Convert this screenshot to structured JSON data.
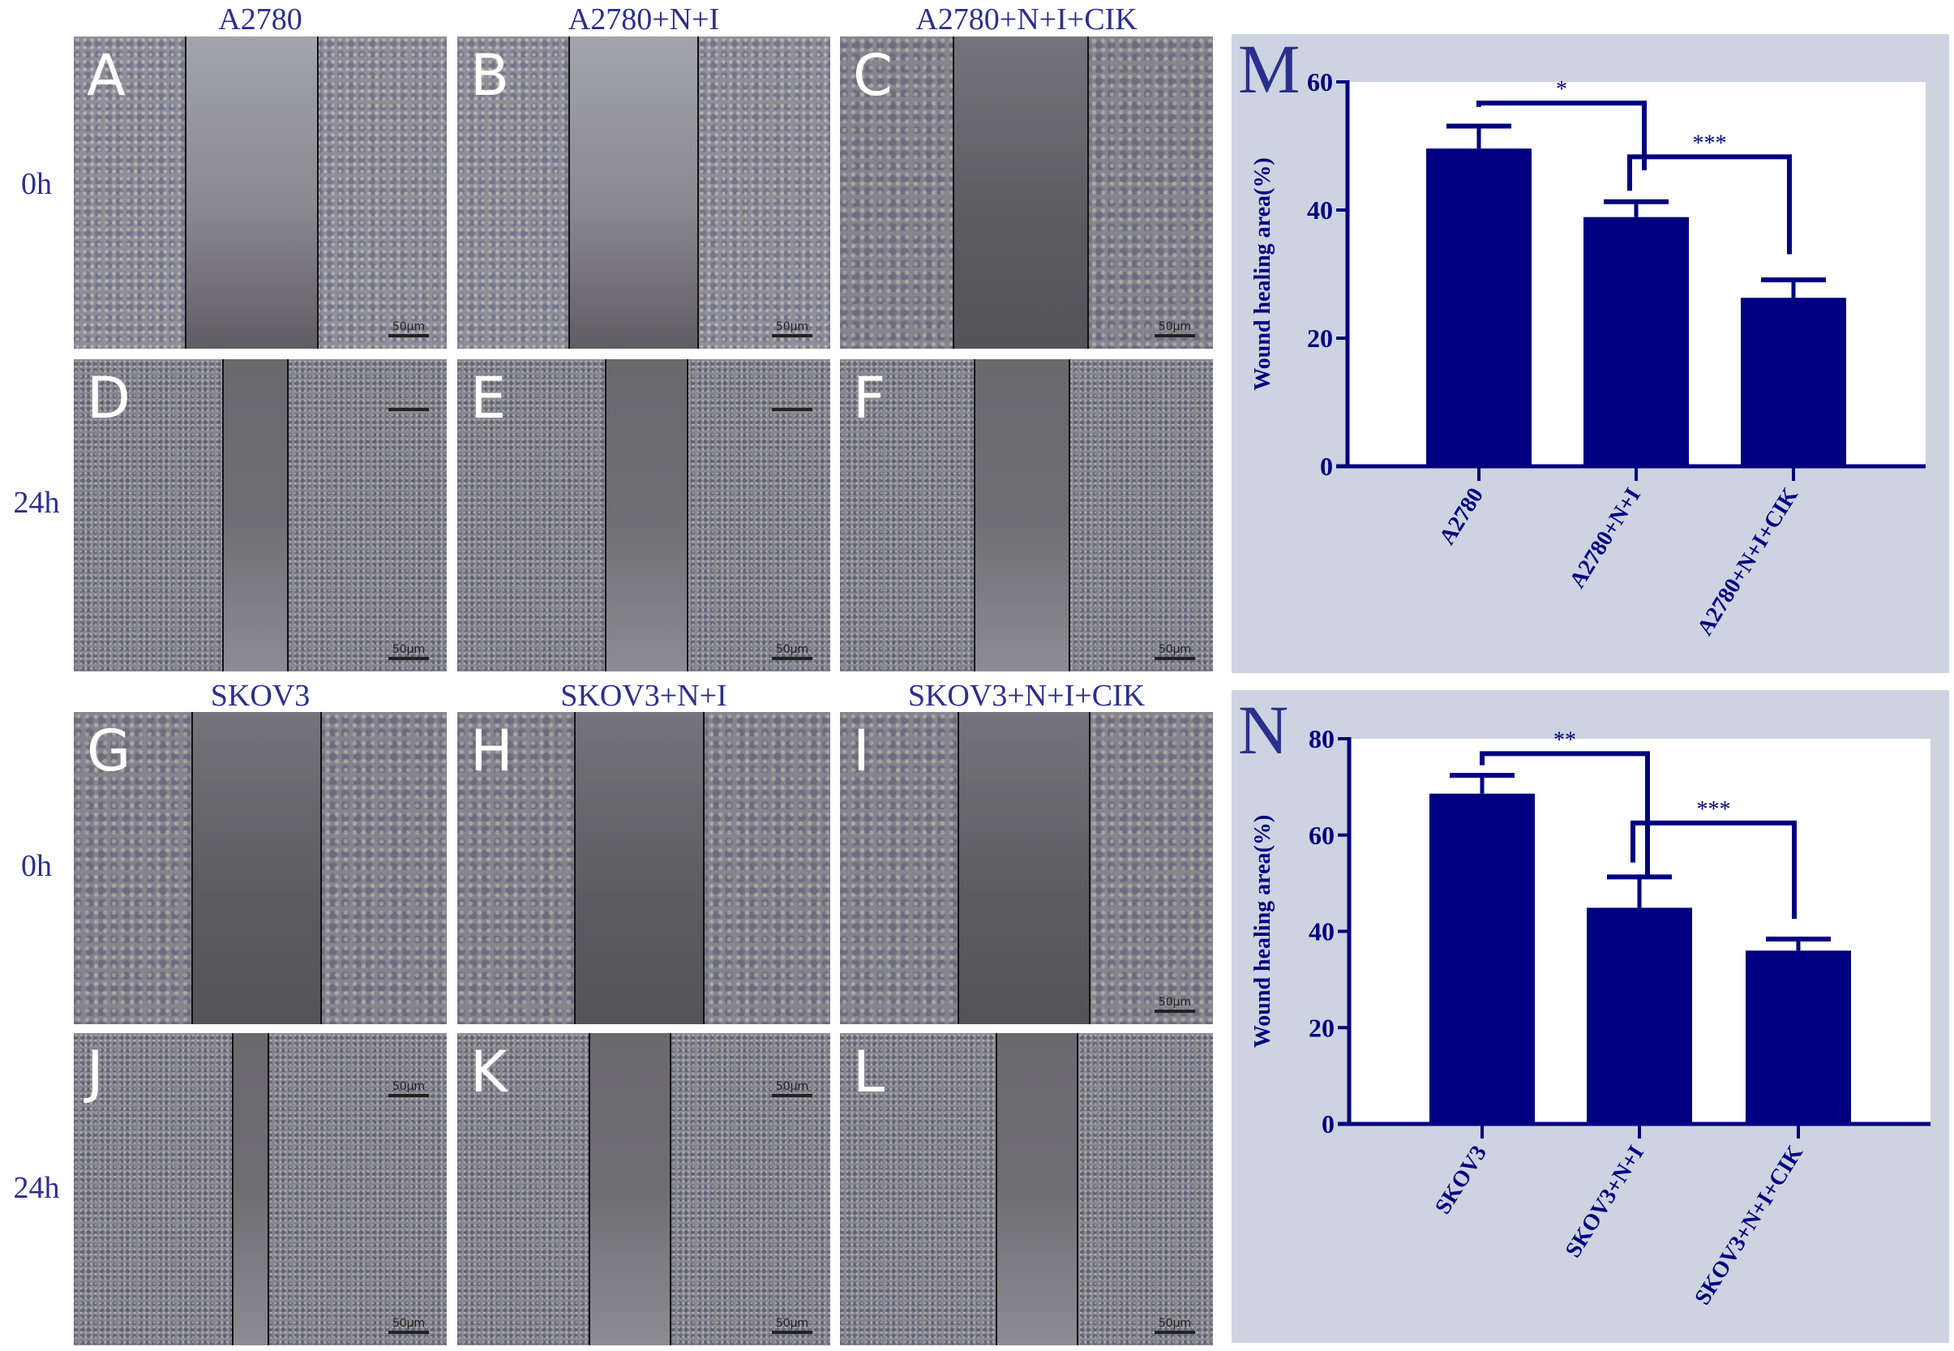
{
  "figure": {
    "column_titles_top": [
      "A2780",
      "A2780+N+I",
      "A2780+N+I+CIK"
    ],
    "column_titles_bottom": [
      "SKOV3",
      "SKOV3+N+I",
      "SKOV3+N+I+CIK"
    ],
    "row_labels": [
      "0h",
      "24h",
      "0h",
      "24h"
    ],
    "scale_bar_label": "50μm",
    "panels": [
      {
        "letter": "A",
        "row": 0,
        "col": 0,
        "lines": [
          137,
          300
        ],
        "tone": "light",
        "scale": "bottom-label"
      },
      {
        "letter": "B",
        "row": 0,
        "col": 1,
        "lines": [
          137,
          296
        ],
        "tone": "light",
        "scale": "bottom-label"
      },
      {
        "letter": "C",
        "row": 0,
        "col": 2,
        "lines": [
          139,
          305
        ],
        "tone": "dark",
        "scale": "bottom"
      },
      {
        "letter": "D",
        "row": 1,
        "col": 0,
        "lines": [
          183,
          263
        ],
        "tone": "dense",
        "scale": "top-bar-bottom"
      },
      {
        "letter": "E",
        "row": 1,
        "col": 1,
        "lines": [
          182,
          283
        ],
        "tone": "dense",
        "scale": "top-bar-bottom"
      },
      {
        "letter": "F",
        "row": 1,
        "col": 2,
        "lines": [
          165,
          282
        ],
        "tone": "dense",
        "scale": "bottom"
      },
      {
        "letter": "G",
        "row": 2,
        "col": 0,
        "lines": [
          145,
          304
        ],
        "tone": "dark",
        "scale": "none"
      },
      {
        "letter": "H",
        "row": 2,
        "col": 1,
        "lines": [
          144,
          303
        ],
        "tone": "dark",
        "scale": "none"
      },
      {
        "letter": "I",
        "row": 2,
        "col": 2,
        "lines": [
          145,
          307
        ],
        "tone": "dark",
        "scale": "bottom"
      },
      {
        "letter": "J",
        "row": 3,
        "col": 0,
        "lines": [
          195,
          239
        ],
        "tone": "dense",
        "scale": "top-bottom"
      },
      {
        "letter": "K",
        "row": 3,
        "col": 1,
        "lines": [
          162,
          262
        ],
        "tone": "dense",
        "scale": "top-bottom"
      },
      {
        "letter": "L",
        "row": 3,
        "col": 2,
        "lines": [
          192,
          292
        ],
        "tone": "dense",
        "scale": "bottom"
      }
    ]
  },
  "chart_data": [
    {
      "panel": "M",
      "type": "bar",
      "title": "",
      "xlabel": "",
      "ylabel": "Wound healing area(%)",
      "categories": [
        "A2780",
        "A2780+N+I",
        "A2780+N+I+CIK"
      ],
      "values": [
        49.6,
        38.9,
        26.3
      ],
      "error_upper": [
        53.1,
        41.3,
        29.1
      ],
      "ylim": [
        0,
        60
      ],
      "yticks": [
        0,
        20,
        40,
        60
      ],
      "grid": false,
      "legend": null,
      "bar_color": "#000080",
      "significance": [
        {
          "from": 0,
          "to": 1,
          "label": "*",
          "y": 56.7,
          "left_drop": 56.1,
          "right_drop": 46.2
        },
        {
          "from": 1,
          "to": 2,
          "label": "***",
          "y": 48.3,
          "left_drop": 43.0,
          "right_drop": 33.1
        }
      ]
    },
    {
      "panel": "N",
      "type": "bar",
      "title": "",
      "xlabel": "",
      "ylabel": "Wound healing area(%)",
      "categories": [
        "SKOV3",
        "SKOV3+N+I",
        "SKOV3+N+I+CIK"
      ],
      "values": [
        68.6,
        44.9,
        36.0
      ],
      "error_upper": [
        72.4,
        51.3,
        38.4
      ],
      "ylim": [
        0,
        80
      ],
      "yticks": [
        0,
        20,
        40,
        60,
        80
      ],
      "grid": false,
      "legend": null,
      "bar_color": "#000080",
      "significance": [
        {
          "from": 0,
          "to": 1,
          "label": "**",
          "y": 76.9,
          "left_drop": 74.5,
          "right_drop": 51.5
        },
        {
          "from": 1,
          "to": 2,
          "label": "***",
          "y": 62.5,
          "left_drop": 54.3,
          "right_drop": 42.6
        }
      ]
    }
  ],
  "colors": {
    "text_accent": "#2b2f8c",
    "bar": "#000080",
    "panel_bg": "#cdd3e0"
  }
}
